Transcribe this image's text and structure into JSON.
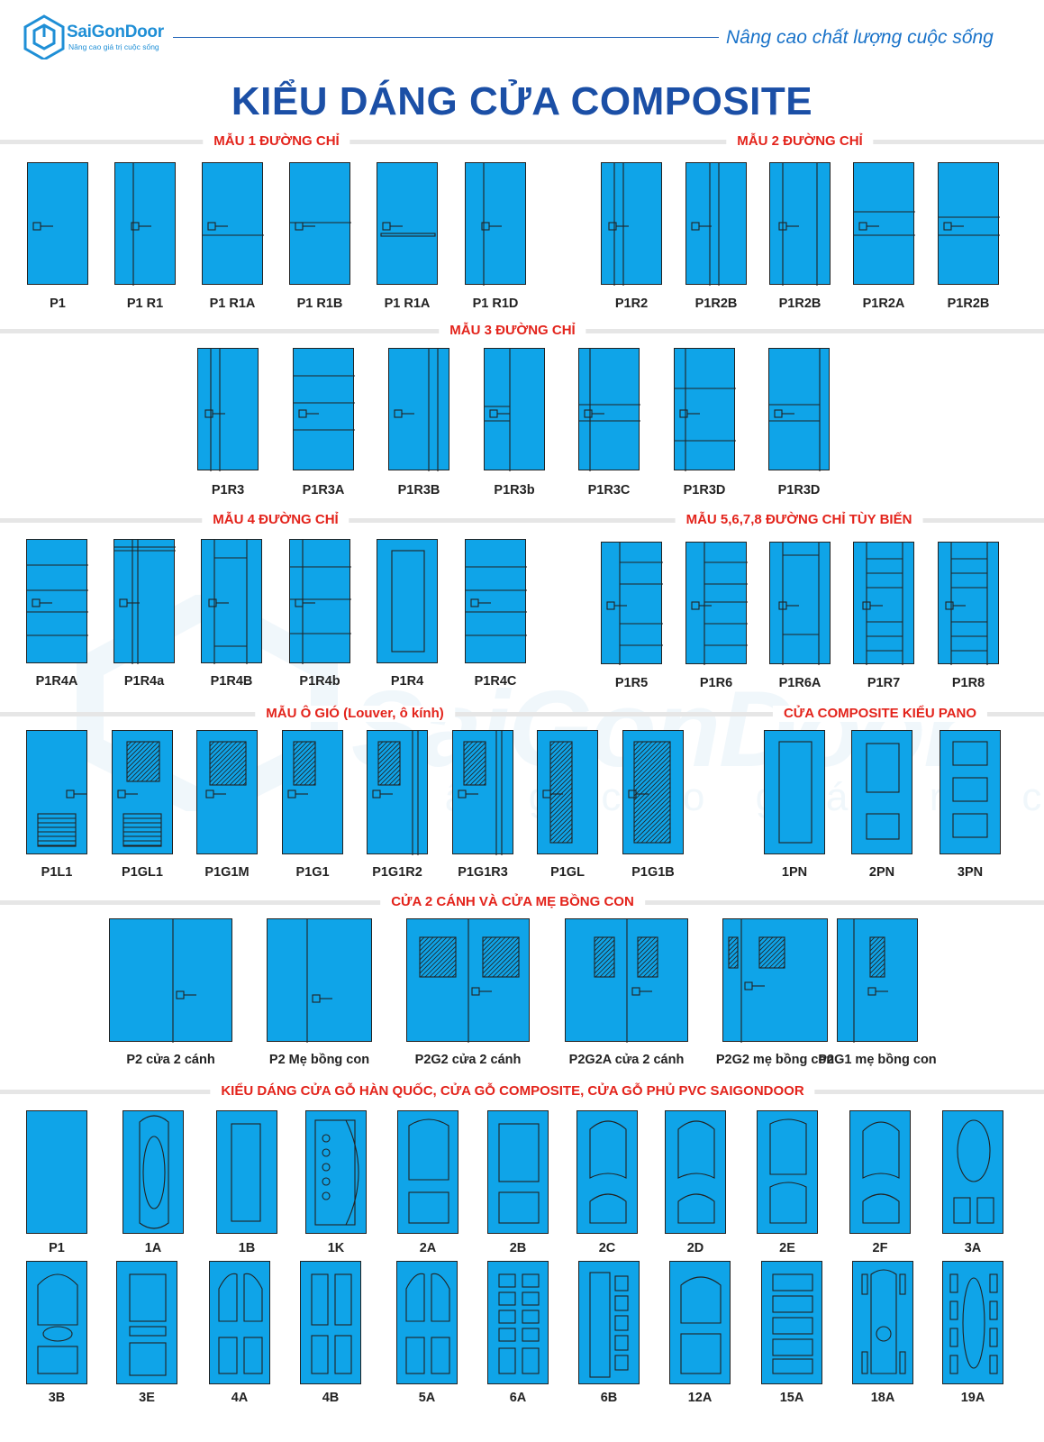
{
  "brand": {
    "name": "SaiGonDoor",
    "slogan": "Nâng cao giá trị cuộc sống",
    "tagline": "Nâng cao chất lượng cuộc sống",
    "accent": "#1f8fd6",
    "door_color": "#0fa4e8",
    "title_color": "#1b4fa6",
    "section_color": "#e3231b"
  },
  "title": "KIỂU DÁNG CỬA COMPOSITE",
  "sections": {
    "s1a": "MẪU 1 ĐƯỜNG CHỈ",
    "s1b": "MẪU 2 ĐƯỜNG CHỈ",
    "s2": "MẪU 3 ĐƯỜNG CHỈ",
    "s3a": "MẪU 4 ĐƯỜNG CHỈ",
    "s3b": "MẪU 5,6,7,8 ĐƯỜNG CHỈ TÙY BIẾN",
    "s4a": "MẪU Ô GIÓ (Louver, ô kính)",
    "s4b": "CỬA COMPOSITE KIỂU PANO",
    "s5": "CỬA 2 CÁNH VÀ CỬA MẸ BỒNG CON",
    "s6": "KIỂU  DÁNG CỬA GỖ  HÀN QUỐC, CỬA GỖ COMPOSITE, CỬA GỖ PHỦ PVC SAIGONDOOR"
  },
  "row1": [
    "P1",
    "P1 R1",
    "P1 R1A",
    "P1 R1B",
    "P1 R1A",
    "P1 R1D",
    "P1R2",
    "P1R2B",
    "P1R2B",
    "P1R2A",
    "P1R2B"
  ],
  "row2": [
    "P1R3",
    "P1R3A",
    "P1R3B",
    "P1R3b",
    "P1R3C",
    "P1R3D",
    "P1R3D"
  ],
  "row3": [
    "P1R4A",
    "P1R4a",
    "P1R4B",
    "P1R4b",
    "P1R4",
    "P1R4C",
    "P1R5",
    "P1R6",
    "P1R6A",
    "P1R7",
    "P1R8"
  ],
  "row4": [
    "P1L1",
    "P1GL1",
    "P1G1M",
    "P1G1",
    "P1G1R2",
    "P1G1R3",
    "P1GL",
    "P1G1B",
    "1PN",
    "2PN",
    "3PN"
  ],
  "row5": [
    "P2 cửa 2 cánh",
    "P2 Mẹ bồng con",
    "P2G2 cửa 2 cánh",
    "P2G2A cửa 2 cánh",
    "P2G2 mẹ bồng con",
    "P2G1 mẹ bồng con"
  ],
  "row6": [
    "P1",
    "1A",
    "1B",
    "1K",
    "2A",
    "2B",
    "2C",
    "2D",
    "2E",
    "2F",
    "3A"
  ],
  "row7": [
    "3B",
    "3E",
    "4A",
    "4B",
    "5A",
    "6A",
    "6B",
    "12A",
    "15A",
    "18A",
    "19A"
  ]
}
